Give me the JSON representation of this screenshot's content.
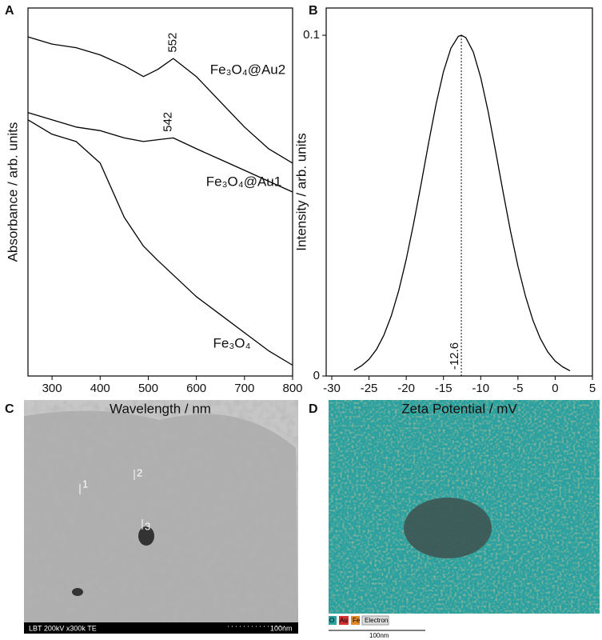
{
  "panel_labels": [
    "A",
    "B",
    "C",
    "D"
  ],
  "chart_data": [
    {
      "type": "line",
      "xlabel": "Wavelength / nm",
      "ylabel": "Absorbance / arb. units",
      "x": [
        250,
        300,
        350,
        400,
        450,
        490,
        520,
        552,
        600,
        650,
        700,
        750,
        800
      ],
      "xlim": [
        250,
        800
      ],
      "xticks": [
        300,
        400,
        500,
        600,
        700,
        800
      ],
      "ylim": [
        0,
        1.02
      ],
      "series": [
        {
          "name": "Fe₃O₄@Au2",
          "color": "#000000",
          "values": [
            0.94,
            0.92,
            0.91,
            0.89,
            0.86,
            0.83,
            0.85,
            0.88,
            0.83,
            0.76,
            0.69,
            0.63,
            0.59
          ]
        },
        {
          "name": "Fe₃O₄@Au1",
          "color": "#000000",
          "values": [
            0.73,
            0.71,
            0.69,
            0.68,
            0.66,
            0.65,
            0.655,
            0.66,
            0.63,
            0.6,
            0.57,
            0.54,
            0.51
          ]
        },
        {
          "name": "Fe₃O₄",
          "color": "#000000",
          "values": [
            0.71,
            0.67,
            0.65,
            0.59,
            0.44,
            0.36,
            0.32,
            0.28,
            0.22,
            0.17,
            0.12,
            0.07,
            0.03
          ]
        }
      ],
      "annotations": [
        {
          "text": "552",
          "x": 552,
          "y": 0.88
        },
        {
          "text": "542",
          "x": 542,
          "y": 0.66
        }
      ]
    },
    {
      "type": "line",
      "xlabel": "Zeta Potential / mV",
      "ylabel": "Intensity / arb. units",
      "x": [
        -27,
        -26,
        -25,
        -24,
        -23,
        -22,
        -21,
        -20,
        -19,
        -18,
        -17,
        -16,
        -15,
        -14,
        -13,
        -12.6,
        -12,
        -11,
        -10,
        -9,
        -8,
        -7,
        -6,
        -5,
        -4,
        -3,
        -2,
        -1,
        0,
        1,
        2
      ],
      "xlim": [
        -30.75,
        5
      ],
      "xticks": [
        -30,
        -25,
        -20,
        -15,
        -10,
        -5,
        0,
        5
      ],
      "ylim": [
        0,
        0.108
      ],
      "yticks": [
        0,
        0.1
      ],
      "series": [
        {
          "name": null,
          "color": "#000000",
          "values": [
            0.0017,
            0.003,
            0.0049,
            0.0078,
            0.012,
            0.0177,
            0.0251,
            0.0342,
            0.0448,
            0.0564,
            0.0684,
            0.0797,
            0.0893,
            0.0962,
            0.0997,
            0.1,
            0.0993,
            0.0951,
            0.0876,
            0.0776,
            0.066,
            0.0541,
            0.0426,
            0.0322,
            0.0235,
            0.0164,
            0.011,
            0.0071,
            0.0044,
            0.0027,
            0.0015
          ]
        }
      ],
      "annotations": [
        {
          "text": "-12.6",
          "x": -12.6,
          "y": 0.1
        }
      ]
    }
  ],
  "images": {
    "c": {
      "markers": [
        "1",
        "2",
        "3"
      ],
      "info": "LBT 200kV x300k TE",
      "scale": "100nm"
    },
    "d": {
      "legend": [
        "O",
        "Au",
        "Fe",
        "Electron"
      ],
      "scale": "100nm"
    }
  }
}
